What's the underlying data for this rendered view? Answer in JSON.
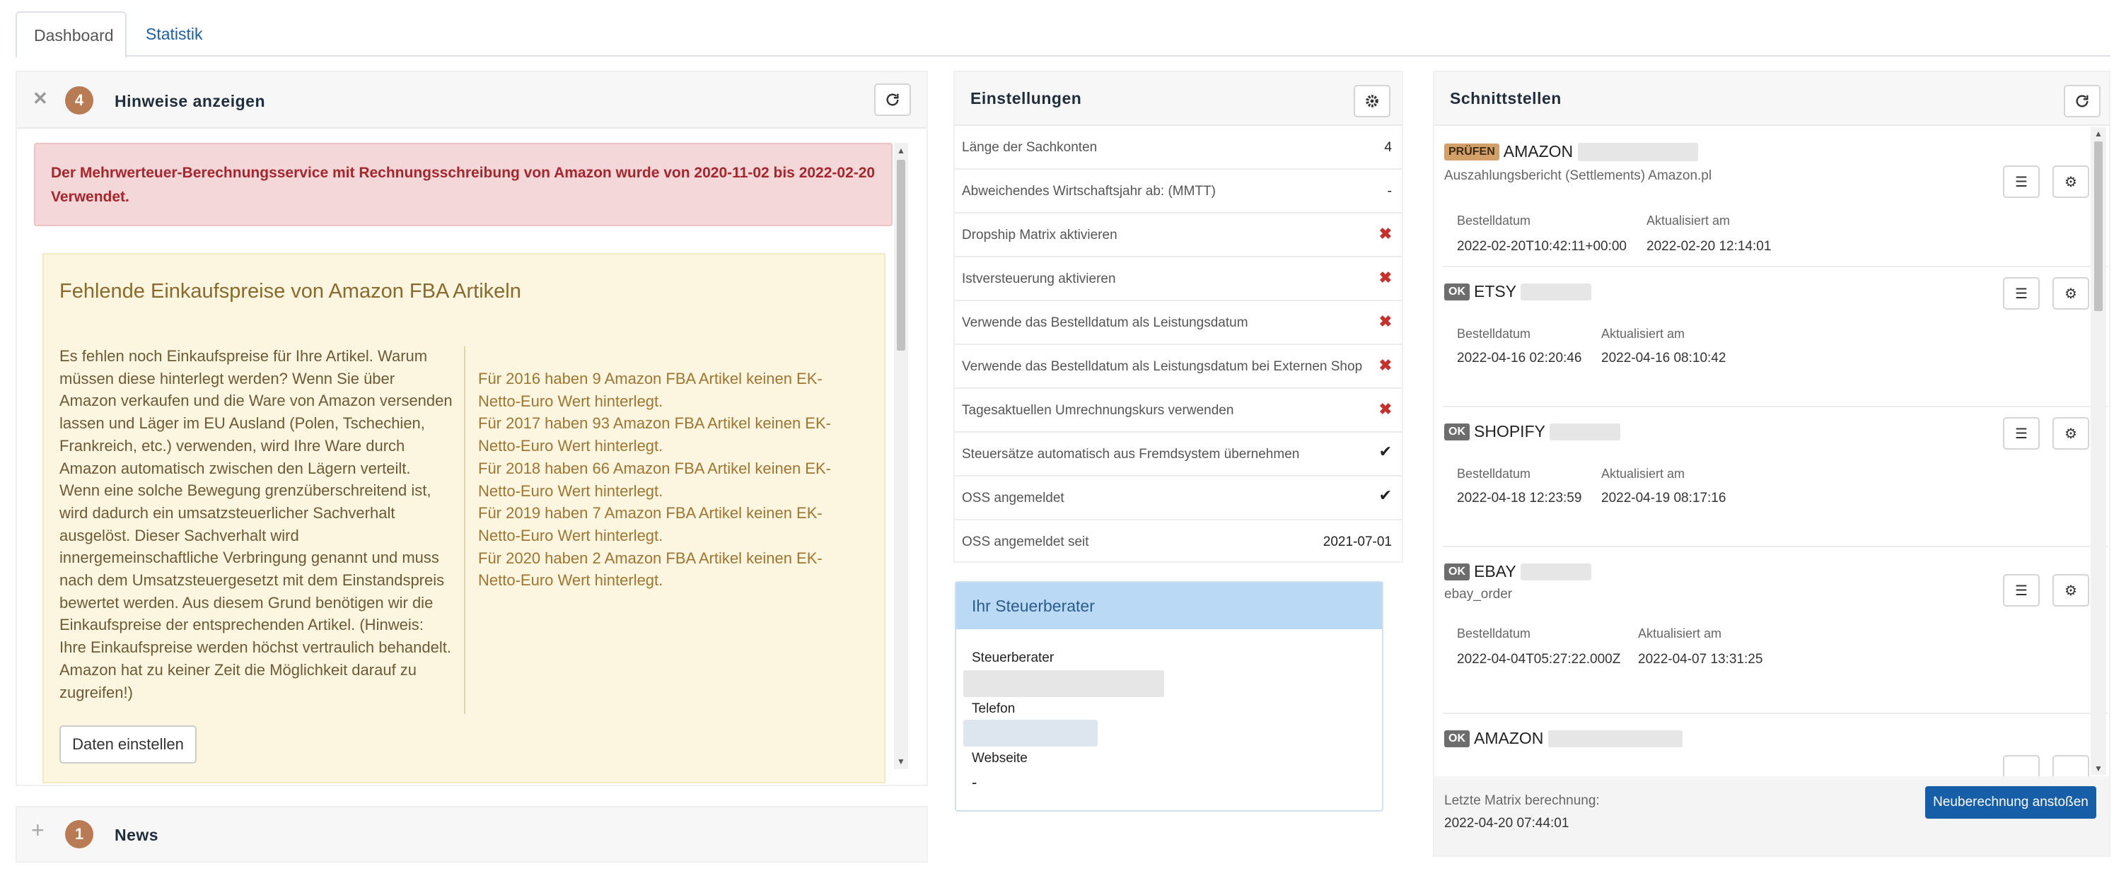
{
  "tabs": [
    {
      "label": "Dashboard",
      "active": true
    },
    {
      "label": "Statistik",
      "active": false
    }
  ],
  "hints": {
    "count": "4",
    "title": "Hinweise anzeigen",
    "alert": "Der Mehrwerteuer-Berechnungsservice mit Rechnungsschreibung von Amazon wurde von 2020-11-02 bis 2022-02-20 Verwendet.",
    "warning": {
      "title": "Fehlende Einkaufspreise von Amazon FBA Artikeln",
      "body": "Es fehlen noch Einkaufspreise für Ihre Artikel. Warum müssen diese hinterlegt werden? Wenn Sie über Amazon verkaufen und die Ware von Amazon versenden lassen und Läger im EU Ausland (Polen, Tschechien, Frankreich, etc.) verwenden, wird Ihre Ware durch Amazon automatisch zwischen den Lägern verteilt. Wenn eine solche Bewegung grenzüberschreitend ist, wird dadurch ein umsatzsteuerlicher Sachverhalt ausgelöst. Dieser Sachverhalt wird innergemeinschaftliche Verbringung genannt und muss nach dem Umsatzsteuergesetzt mit dem Einstandspreis bewertet werden. Aus diesem Grund benötigen wir die Einkaufspreise der entsprechenden Artikel. (Hinweis: Ihre Einkaufspreise werden höchst vertraulich behandelt. Amazon hat zu keiner Zeit die Möglichkeit darauf zu zugreifen!)",
      "years": [
        "Für 2016 haben 9 Amazon FBA Artikel keinen EK-Netto-Euro Wert hinterlegt.",
        "Für 2017 haben 93 Amazon FBA Artikel keinen EK-Netto-Euro Wert hinterlegt.",
        "Für 2018 haben 66 Amazon FBA Artikel keinen EK-Netto-Euro Wert hinterlegt.",
        "Für 2019 haben 7 Amazon FBA Artikel keinen EK-Netto-Euro Wert hinterlegt.",
        "Für 2020 haben 2 Amazon FBA Artikel keinen EK-Netto-Euro Wert hinterlegt."
      ],
      "button": "Daten einstellen"
    }
  },
  "news": {
    "count": "1",
    "title": "News"
  },
  "settings": {
    "title": "Einstellungen",
    "rows": [
      {
        "label": "Länge der Sachkonten",
        "value": "4",
        "kind": "text"
      },
      {
        "label": "Abweichendes Wirtschaftsjahr ab: (MMTT)",
        "value": "-",
        "kind": "text"
      },
      {
        "label": "Dropship Matrix aktivieren",
        "value": "✖",
        "kind": "no"
      },
      {
        "label": "Istversteuerung aktivieren",
        "value": "✖",
        "kind": "no"
      },
      {
        "label": "Verwende das Bestelldatum als Leistungsdatum",
        "value": "✖",
        "kind": "no"
      },
      {
        "label": "Verwende das Bestelldatum als Leistungsdatum bei Externen Shop",
        "value": "✖",
        "kind": "no"
      },
      {
        "label": "Tagesaktuellen Umrechnungskurs verwenden",
        "value": "✖",
        "kind": "no"
      },
      {
        "label": "Steuersätze automatisch aus Fremdsystem übernehmen",
        "value": "✔",
        "kind": "yes"
      },
      {
        "label": "OSS angemeldet",
        "value": "✔",
        "kind": "yes"
      },
      {
        "label": "OSS angemeldet seit",
        "value": "2021-07-01",
        "kind": "text"
      }
    ]
  },
  "advisor": {
    "title": "Ihr Steuerberater",
    "label_advisor": "Steuerberater",
    "label_phone": "Telefon",
    "label_website": "Webseite",
    "website": "-"
  },
  "interfaces": {
    "title": "Schnittstellen",
    "col_ordered": "Bestelldatum",
    "col_updated": "Aktualisiert am",
    "items": [
      {
        "status": "PRÜFEN",
        "name": "AMAZON",
        "sub": "Auszahlungsbericht (Settlements) Amazon.pl",
        "ordered": "2022-02-20T10:42:11+00:00",
        "updated": "2022-02-20 12:14:01"
      },
      {
        "status": "OK",
        "name": "ETSY",
        "sub": "",
        "ordered": "2022-04-16 02:20:46",
        "updated": "2022-04-16 08:10:42"
      },
      {
        "status": "OK",
        "name": "SHOPIFY",
        "sub": "",
        "ordered": "2022-04-18 12:23:59",
        "updated": "2022-04-19 08:17:16"
      },
      {
        "status": "OK",
        "name": "EBAY",
        "sub": "ebay_order",
        "ordered": "2022-04-04T05:27:22.000Z",
        "updated": "2022-04-07 13:31:25"
      },
      {
        "status": "OK",
        "name": "AMAZON",
        "sub": "",
        "ordered": "",
        "updated": ""
      }
    ],
    "matrix_label": "Letzte Matrix berechnung:",
    "matrix_date": "2022-04-20 07:44:01",
    "recalc_button": "Neuberechnung anstoßen"
  }
}
